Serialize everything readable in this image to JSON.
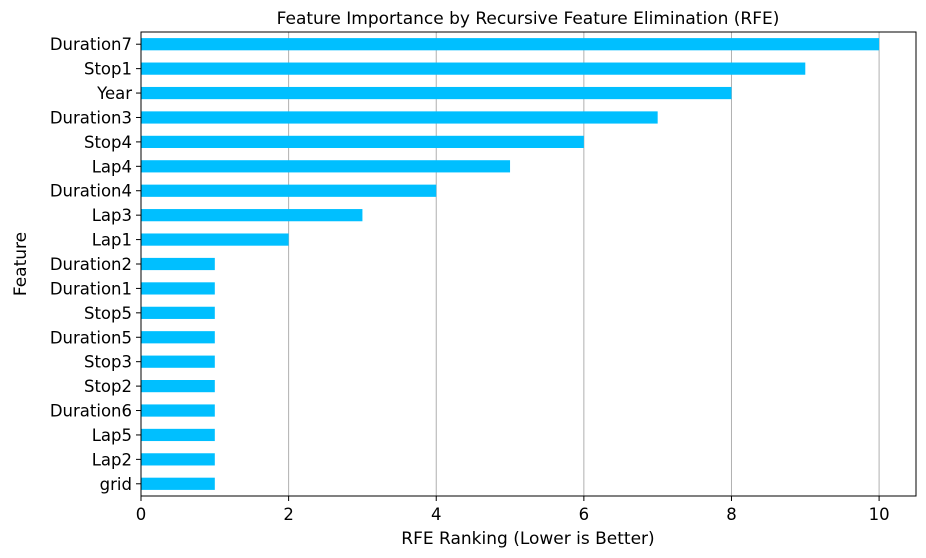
{
  "chart_data": {
    "type": "bar",
    "orientation": "horizontal",
    "title": "Feature Importance by Recursive Feature Elimination (RFE)",
    "xlabel": "RFE Ranking (Lower is Better)",
    "ylabel": "Feature",
    "xlim": [
      0,
      10.5
    ],
    "xticks": [
      0,
      2,
      4,
      6,
      8,
      10
    ],
    "grid": "x",
    "bar_color": "#00bfff",
    "categories": [
      "Duration7",
      "Stop1",
      "Year",
      "Duration3",
      "Stop4",
      "Lap4",
      "Duration4",
      "Lap3",
      "Lap1",
      "Duration2",
      "Duration1",
      "Stop5",
      "Duration5",
      "Stop3",
      "Stop2",
      "Duration6",
      "Lap5",
      "Lap2",
      "grid"
    ],
    "values": [
      10,
      9,
      8,
      7,
      6,
      5,
      4,
      3,
      2,
      1,
      1,
      1,
      1,
      1,
      1,
      1,
      1,
      1,
      1
    ]
  }
}
